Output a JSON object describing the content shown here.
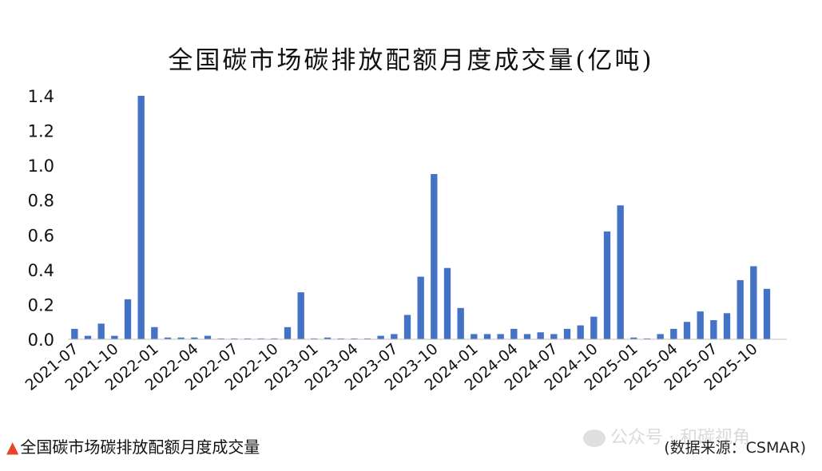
{
  "chart_data": {
    "type": "bar",
    "title": "全国碳市场碳排放配额月度成交量(亿吨)",
    "xlabel": "",
    "ylabel": "",
    "ylim": [
      0,
      1.4
    ],
    "yticks": [
      "0.0",
      "0.2",
      "0.4",
      "0.6",
      "0.8",
      "1.0",
      "1.2",
      "1.4"
    ],
    "bar_color": "#4472c4",
    "grid": false,
    "x_tick_labels": [
      "2021-07",
      "2021-10",
      "2022-01",
      "2022-04",
      "2022-07",
      "2022-10",
      "2023-01",
      "2023-04",
      "2023-07",
      "2023-10",
      "2024-01",
      "2024-04",
      "2024-07",
      "2024-10",
      "2025-01",
      "2025-04",
      "2025-07",
      "2025-10"
    ],
    "categories": [
      "2021-07",
      "2021-08",
      "2021-09",
      "2021-10",
      "2021-11",
      "2021-12",
      "2022-01",
      "2022-02",
      "2022-03",
      "2022-04",
      "2022-05",
      "2022-06",
      "2022-07",
      "2022-08",
      "2022-09",
      "2022-10",
      "2022-11",
      "2022-12",
      "2023-01",
      "2023-02",
      "2023-03",
      "2023-04",
      "2023-05",
      "2023-06",
      "2023-07",
      "2023-08",
      "2023-09",
      "2023-10",
      "2023-11",
      "2023-12",
      "2024-01",
      "2024-02",
      "2024-03",
      "2024-04",
      "2024-05",
      "2024-06",
      "2024-07",
      "2024-08",
      "2024-09",
      "2024-10",
      "2024-11",
      "2024-12",
      "2025-01",
      "2025-02",
      "2025-03",
      "2025-04",
      "2025-05",
      "2025-06",
      "2025-07",
      "2025-08",
      "2025-09",
      "2025-10",
      "2025-11",
      "2025-12"
    ],
    "values": [
      0.06,
      0.02,
      0.09,
      0.02,
      0.23,
      1.4,
      0.07,
      0.01,
      0.01,
      0.01,
      0.02,
      0.005,
      0.005,
      0.005,
      0.005,
      0.005,
      0.07,
      0.27,
      0.005,
      0.01,
      0.005,
      0.005,
      0.005,
      0.02,
      0.03,
      0.14,
      0.36,
      0.95,
      0.41,
      0.18,
      0.03,
      0.03,
      0.03,
      0.06,
      0.03,
      0.04,
      0.03,
      0.06,
      0.08,
      0.13,
      0.62,
      0.77,
      0.01,
      0.005,
      0.03,
      0.06,
      0.1,
      0.16,
      0.11,
      0.15,
      0.34,
      0.42,
      0.29,
      0
    ]
  },
  "caption": {
    "marker": "▲",
    "text": "全国碳市场碳排放配额月度成交量"
  },
  "source": "(数据来源：CSMAR)",
  "watermark": "公众号 · 和碳视角"
}
